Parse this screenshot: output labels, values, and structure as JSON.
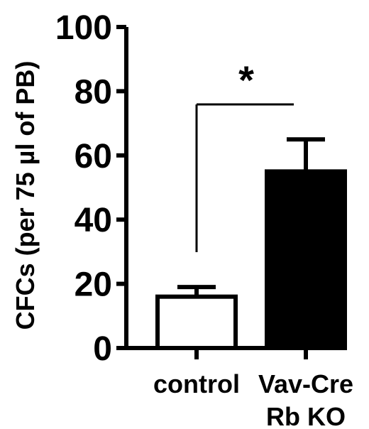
{
  "chart_data": {
    "type": "bar",
    "categories": [
      {
        "lines": [
          "control"
        ]
      },
      {
        "lines": [
          "Vav-Cre",
          "Rb KO"
        ]
      }
    ],
    "series": [
      {
        "values": [
          16,
          55
        ],
        "errors": [
          3,
          10
        ],
        "fills": [
          "#ffffff",
          "#000000"
        ]
      }
    ],
    "ylabel": "CFCs (per 75 µl of PB)",
    "xlabel": "",
    "title": "",
    "ylim": [
      0,
      100
    ],
    "yticks": [
      0,
      20,
      40,
      60,
      80,
      100
    ],
    "significance": {
      "label": "*",
      "between": [
        0,
        1
      ]
    },
    "grid": false,
    "legend": "none"
  }
}
